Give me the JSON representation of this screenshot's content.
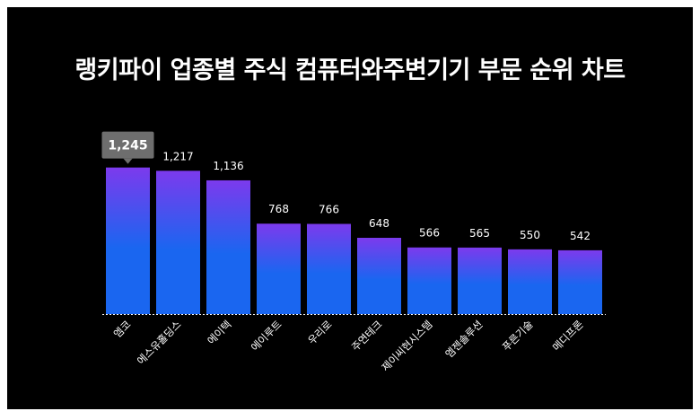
{
  "chart_data": {
    "type": "bar",
    "title": "랭키파이 업종별 주식 컴퓨터와주변기기 부문 순위 차트",
    "categories": [
      "엠코",
      "에스유홀딩스",
      "에이텍",
      "에이루트",
      "우리로",
      "주연테크",
      "제이씨현시스템",
      "엠젠솔루션",
      "푸른기술",
      "메디프론"
    ],
    "values": [
      1245,
      1217,
      1136,
      768,
      766,
      648,
      566,
      565,
      550,
      542
    ],
    "value_labels": [
      "1,245",
      "1,217",
      "1,136",
      "768",
      "766",
      "648",
      "566",
      "565",
      "550",
      "542"
    ],
    "highlight": {
      "index": 0,
      "label": "1,245"
    },
    "ylim": [
      0,
      1250
    ],
    "grid": false,
    "legend": "none",
    "colors": {
      "bar_top": "#7c3aed",
      "bar_bottom": "#1a66f0",
      "background": "#000000",
      "tooltip": "#6e6e6e",
      "baseline": "#ffffff"
    }
  }
}
